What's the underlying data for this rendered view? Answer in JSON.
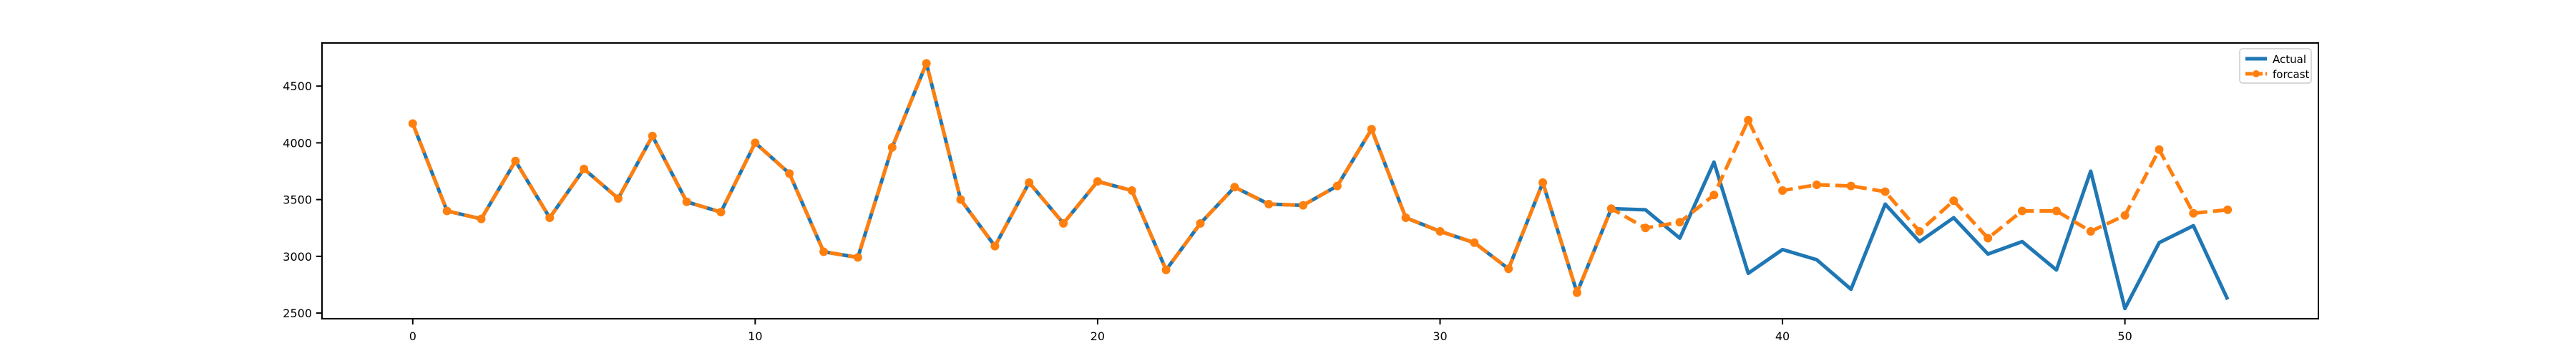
{
  "chart_data": {
    "type": "line",
    "title": "",
    "xlabel": "",
    "ylabel": "",
    "xlim": [
      -2.65,
      55.65
    ],
    "ylim": [
      2450,
      4880
    ],
    "grid": false,
    "legend_position": "top-right",
    "x_ticks": [
      0,
      10,
      20,
      30,
      40,
      50
    ],
    "y_ticks": [
      2500,
      3000,
      3500,
      4000,
      4500
    ],
    "x": [
      0,
      1,
      2,
      3,
      4,
      5,
      6,
      7,
      8,
      9,
      10,
      11,
      12,
      13,
      14,
      15,
      16,
      17,
      18,
      19,
      20,
      21,
      22,
      23,
      24,
      25,
      26,
      27,
      28,
      29,
      30,
      31,
      32,
      33,
      34,
      35,
      36,
      37,
      38,
      39,
      40,
      41,
      42,
      43,
      44,
      45,
      46,
      47,
      48,
      49,
      50,
      51,
      52,
      53
    ],
    "series": [
      {
        "name": "Actual",
        "color": "#1f77b4",
        "line_style": "solid",
        "marker": "none",
        "values": [
          4170,
          3400,
          3330,
          3840,
          3340,
          3770,
          3510,
          4060,
          3480,
          3390,
          4000,
          3730,
          3040,
          2990,
          3960,
          4700,
          3500,
          3090,
          3650,
          3290,
          3660,
          3580,
          2880,
          3290,
          3610,
          3460,
          3450,
          3620,
          4120,
          3340,
          3220,
          3120,
          2890,
          3650,
          2680,
          3420,
          3410,
          3160,
          3830,
          2850,
          3060,
          2970,
          2710,
          3460,
          3130,
          3340,
          3020,
          3130,
          2880,
          3750,
          2540,
          3120,
          3270,
          2620
        ]
      },
      {
        "name": "forcast",
        "color": "#ff7f0e",
        "line_style": "dashed",
        "marker": "circle",
        "values": [
          4170,
          3400,
          3330,
          3840,
          3340,
          3770,
          3510,
          4060,
          3480,
          3390,
          4000,
          3730,
          3040,
          2990,
          3960,
          4700,
          3500,
          3090,
          3650,
          3290,
          3660,
          3580,
          2880,
          3290,
          3610,
          3460,
          3450,
          3620,
          4120,
          3340,
          3220,
          3120,
          2890,
          3650,
          2680,
          3420,
          3250,
          3300,
          3540,
          4200,
          3580,
          3630,
          3620,
          3570,
          3220,
          3490,
          3160,
          3400,
          3400,
          3220,
          3360,
          3940,
          3380,
          3410
        ]
      }
    ]
  }
}
